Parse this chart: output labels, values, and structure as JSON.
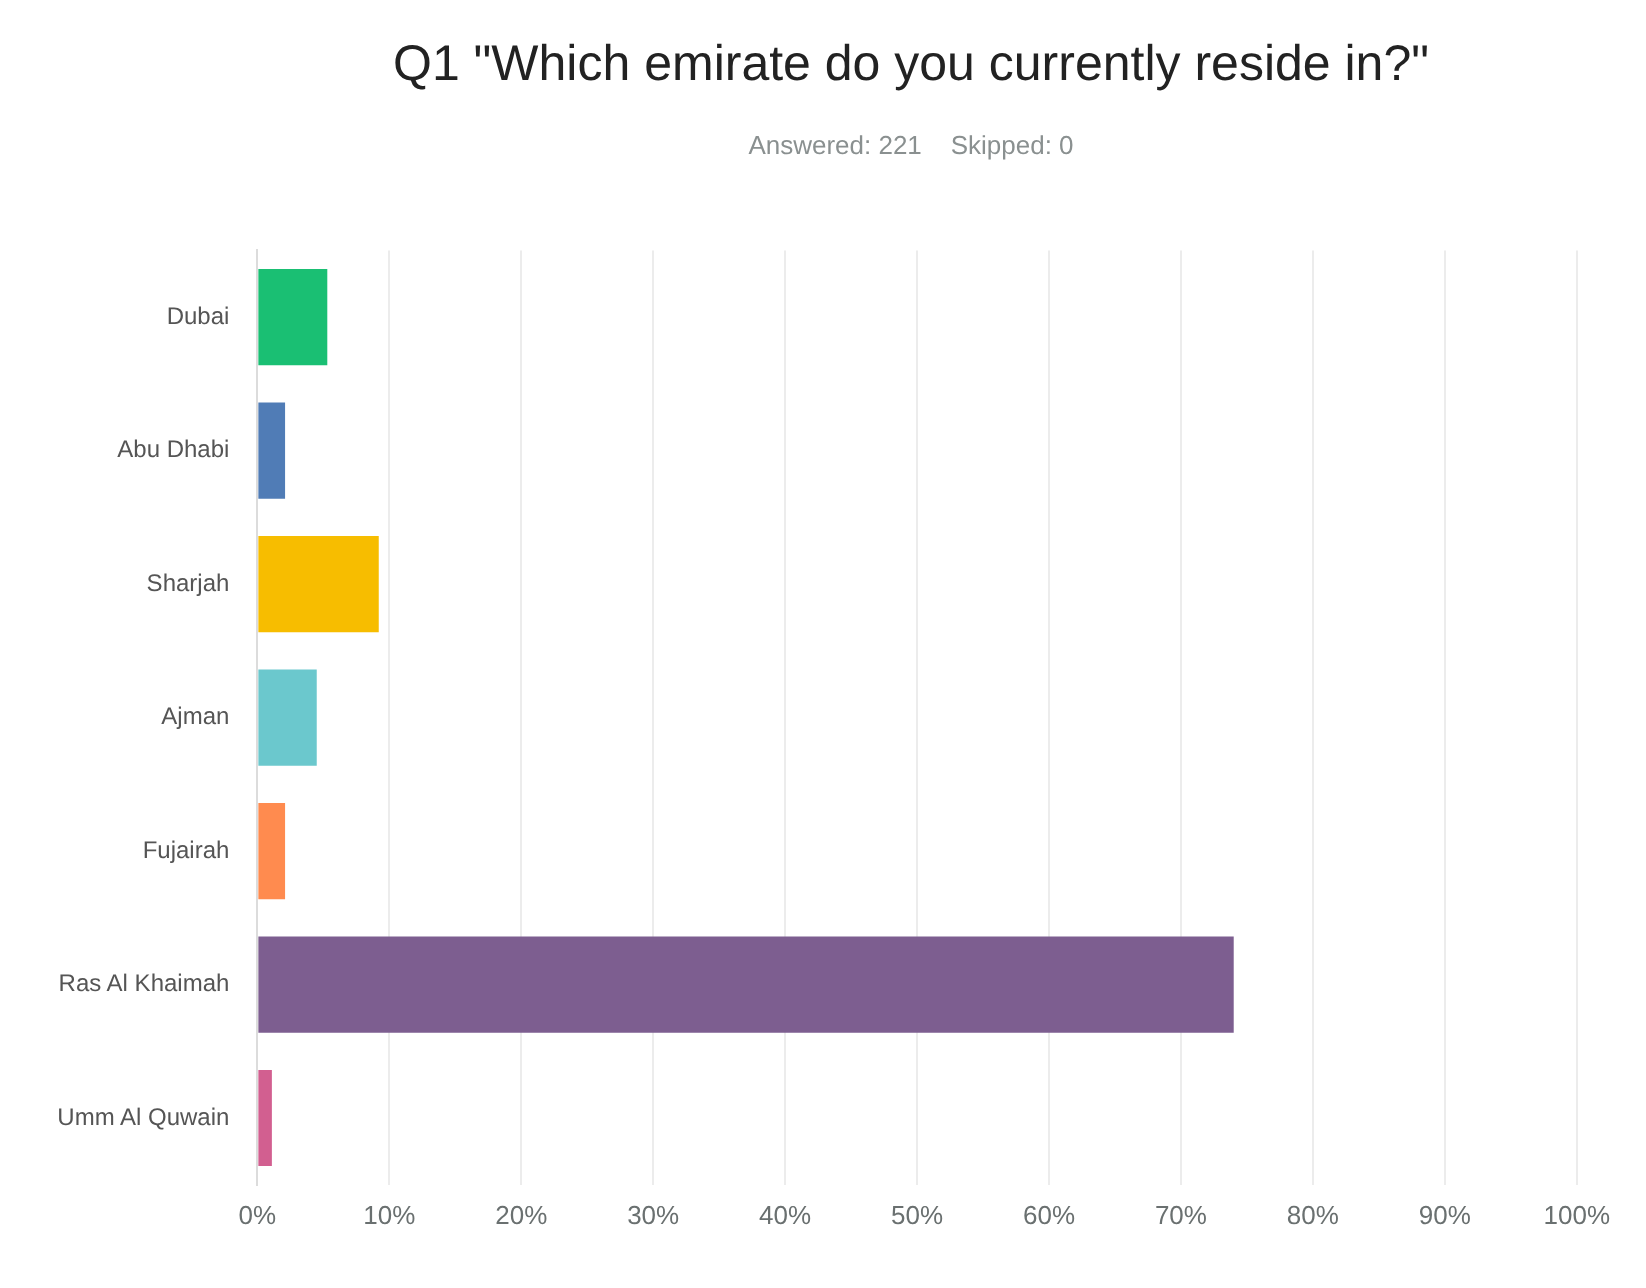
{
  "chart_data": {
    "type": "bar",
    "orientation": "horizontal",
    "title": "Q1 \"Which emirate do you currently reside in?\"",
    "subtitle": "Answered: 221    Skipped: 0",
    "categories": [
      "Dubai",
      "Abu Dhabi",
      "Sharjah",
      "Ajman",
      "Fujairah",
      "Ras Al Khaimah",
      "Umm Al Quwain"
    ],
    "values": [
      5.3,
      2.1,
      9.2,
      4.5,
      2.1,
      74,
      1.1
    ],
    "colors": [
      "#1abf73",
      "#507cb6",
      "#f7bd00",
      "#6bc8cd",
      "#ff8b4f",
      "#7d5e90",
      "#d25f90"
    ],
    "xlim": [
      0,
      100
    ],
    "xticks": [
      {
        "value": 0,
        "label": "0%"
      },
      {
        "value": 10,
        "label": "10%"
      },
      {
        "value": 20,
        "label": "20%"
      },
      {
        "value": 30,
        "label": "30%"
      },
      {
        "value": 40,
        "label": "40%"
      },
      {
        "value": 50,
        "label": "50%"
      },
      {
        "value": 60,
        "label": "60%"
      },
      {
        "value": 70,
        "label": "70%"
      },
      {
        "value": 80,
        "label": "80%"
      },
      {
        "value": 90,
        "label": "90%"
      },
      {
        "value": 100,
        "label": "100%"
      }
    ],
    "grid": "x",
    "legend": false
  }
}
